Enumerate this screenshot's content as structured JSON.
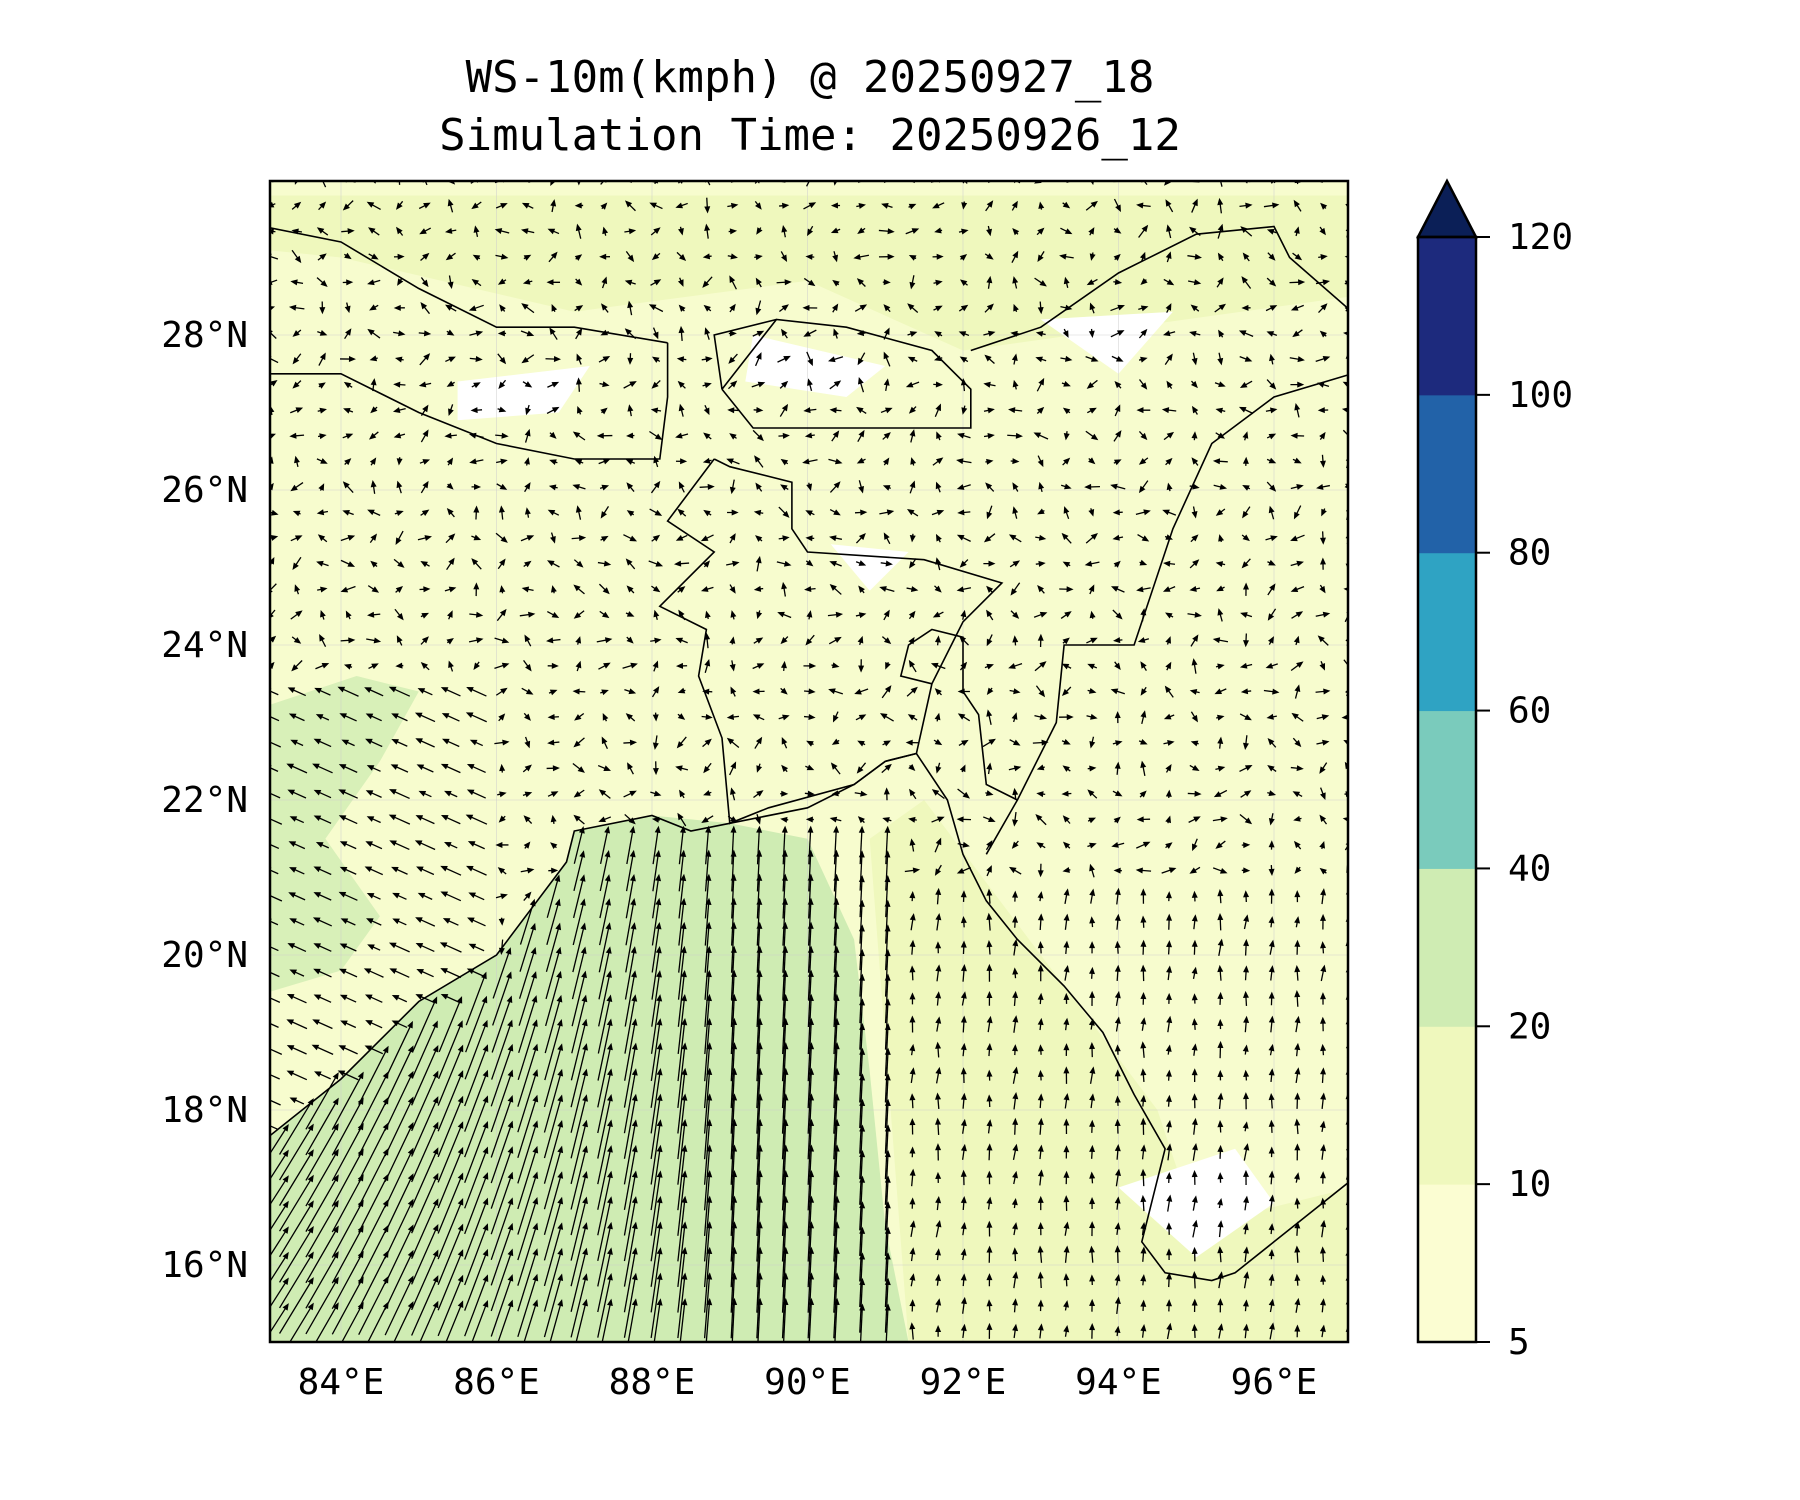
{
  "title": {
    "line1": "WS-10m(kmph) @ 20250927_18",
    "line2": "Simulation Time: 20250926_12"
  },
  "map": {
    "extent_lon": [
      83,
      97
    ],
    "extent_lat": [
      15,
      30
    ],
    "lat_ticks": [
      {
        "value": 28,
        "label": "28°N"
      },
      {
        "value": 26,
        "label": "26°N"
      },
      {
        "value": 24,
        "label": "24°N"
      },
      {
        "value": 22,
        "label": "22°N"
      },
      {
        "value": 20,
        "label": "20°N"
      },
      {
        "value": 18,
        "label": "18°N"
      },
      {
        "value": 16,
        "label": "16°N"
      }
    ],
    "lon_ticks": [
      {
        "value": 84,
        "label": "84°E"
      },
      {
        "value": 86,
        "label": "86°E"
      },
      {
        "value": 88,
        "label": "88°E"
      },
      {
        "value": 90,
        "label": "90°E"
      },
      {
        "value": 92,
        "label": "92°E"
      },
      {
        "value": 94,
        "label": "94°E"
      },
      {
        "value": 96,
        "label": "96°E"
      }
    ]
  },
  "colorbar": {
    "levels": [
      "5",
      "10",
      "20",
      "40",
      "60",
      "80",
      "100",
      "120"
    ],
    "colors": [
      "#fbfdd2",
      "#eff8bd",
      "#cfecb3",
      "#7acbbc",
      "#2fa3c3",
      "#2262a8",
      "#1d2a7d"
    ],
    "extend_color": "#0b1f57"
  }
}
